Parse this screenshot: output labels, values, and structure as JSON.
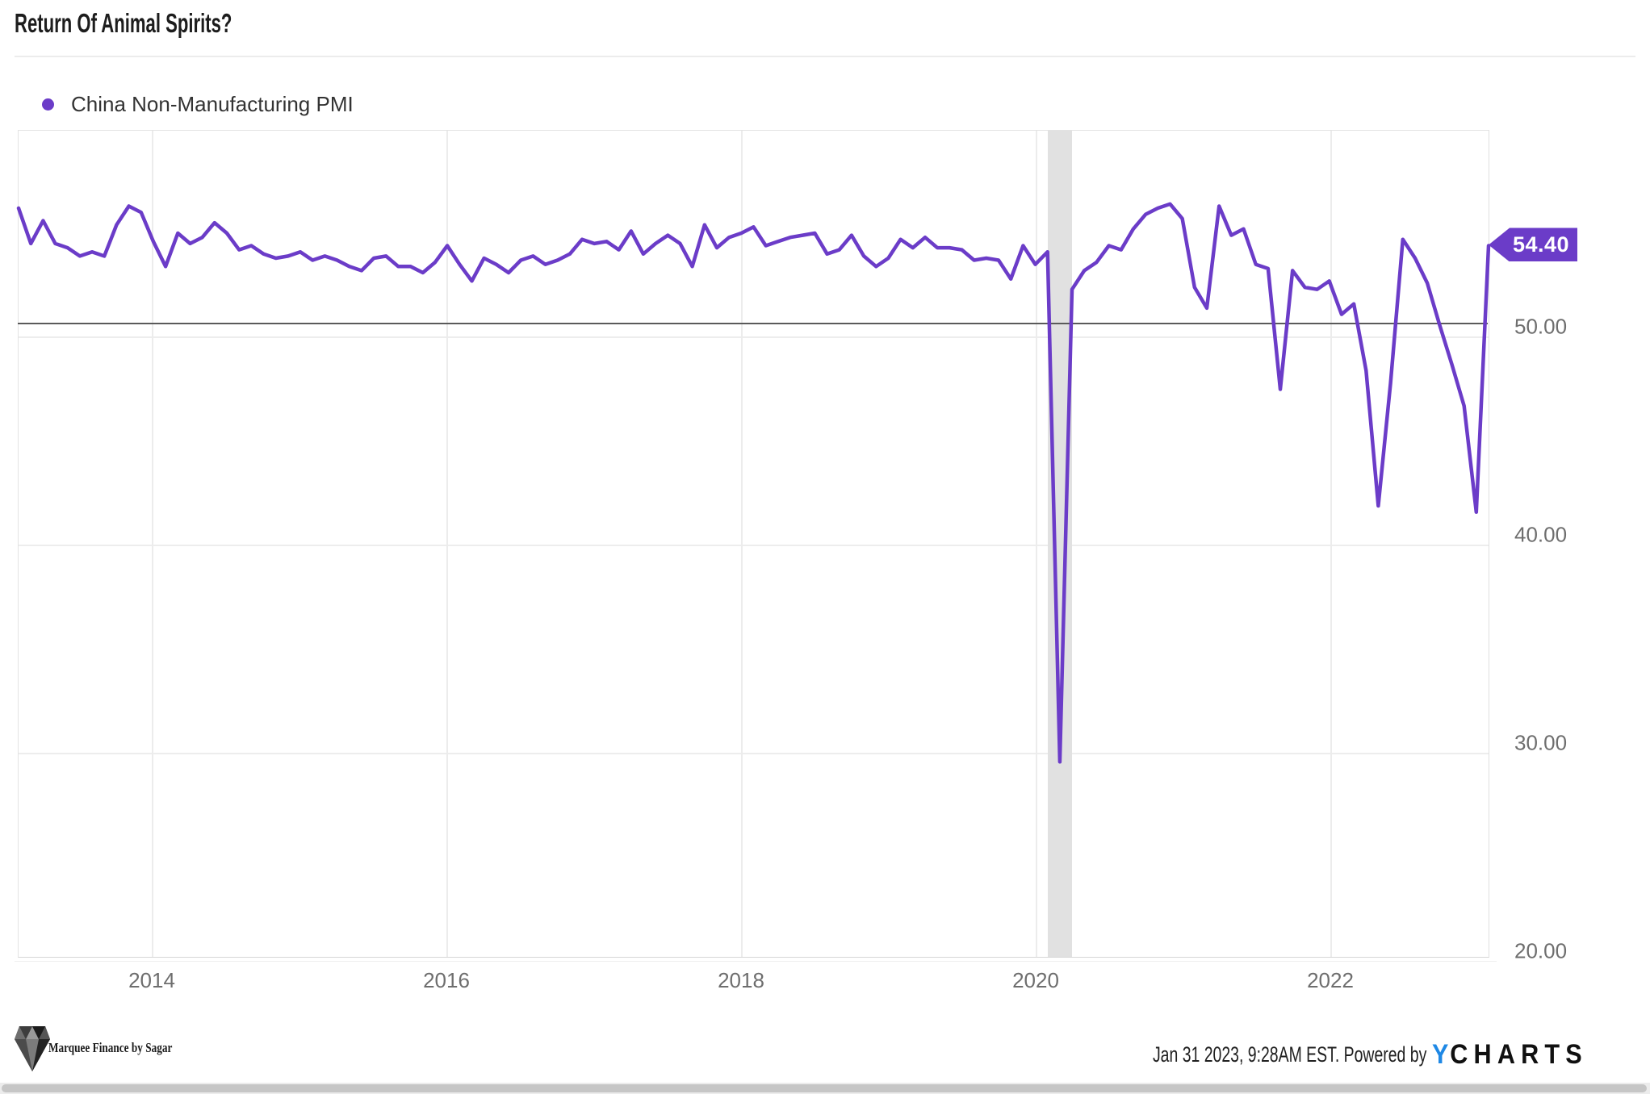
{
  "title": "Return Of Animal Spirits?",
  "legend": {
    "series_label": "China Non-Manufacturing PMI",
    "dot_color": "#6B3CC8"
  },
  "last_value_label": "54.40",
  "chart_data": {
    "type": "line",
    "title": "Return Of Animal Spirits?",
    "series": [
      {
        "name": "China Non-Manufacturing PMI",
        "color": "#6B3CC8",
        "start": "2013-01",
        "end": "2023-01",
        "frequency": "monthly",
        "values": [
          56.2,
          54.5,
          55.6,
          54.5,
          54.3,
          53.9,
          54.1,
          53.9,
          55.4,
          56.3,
          56.0,
          54.6,
          53.4,
          55.0,
          54.5,
          54.8,
          55.5,
          55.0,
          54.2,
          54.4,
          54.0,
          53.8,
          53.9,
          54.1,
          53.7,
          53.9,
          53.7,
          53.4,
          53.2,
          53.8,
          53.9,
          53.4,
          53.4,
          53.1,
          53.6,
          54.4,
          53.5,
          52.7,
          53.8,
          53.5,
          53.1,
          53.7,
          53.9,
          53.5,
          53.7,
          54.0,
          54.7,
          54.5,
          54.6,
          54.2,
          55.1,
          54.0,
          54.5,
          54.9,
          54.5,
          53.4,
          55.4,
          54.3,
          54.8,
          55.0,
          55.3,
          54.4,
          54.6,
          54.8,
          54.9,
          55.0,
          54.0,
          54.2,
          54.9,
          53.9,
          53.4,
          53.8,
          54.7,
          54.3,
          54.8,
          54.3,
          54.3,
          54.2,
          53.7,
          53.8,
          53.7,
          52.8,
          54.4,
          53.5,
          54.1,
          29.6,
          52.3,
          53.2,
          53.6,
          54.4,
          54.2,
          55.2,
          55.9,
          56.2,
          56.4,
          55.7,
          52.4,
          51.4,
          56.3,
          54.9,
          55.2,
          53.5,
          53.3,
          47.5,
          53.2,
          52.4,
          52.3,
          52.7,
          51.1,
          51.6,
          48.4,
          41.9,
          47.8,
          54.7,
          53.8,
          52.6,
          50.6,
          48.7,
          46.7,
          41.6,
          54.4
        ]
      }
    ],
    "last_value": 54.4,
    "x_tick_labels": [
      "2014",
      "2016",
      "2018",
      "2020",
      "2022"
    ],
    "y_tick_labels": [
      "50.00",
      "40.00",
      "30.00",
      "20.00"
    ],
    "y_ticks": [
      50,
      40,
      30,
      20
    ],
    "y_range": [
      20,
      59.9
    ],
    "reference_line_value": 50,
    "recession_band": {
      "start": "2020-01",
      "end": "2020-03"
    },
    "grid": true,
    "legend_position": "top-left"
  },
  "footer": {
    "logo_text": "Marquee Finance by Sagar",
    "timestamp_text": "Jan 31 2023, 9:28AM EST. Powered by",
    "ycharts_y": "Y",
    "ycharts_rest": "CHARTS"
  }
}
